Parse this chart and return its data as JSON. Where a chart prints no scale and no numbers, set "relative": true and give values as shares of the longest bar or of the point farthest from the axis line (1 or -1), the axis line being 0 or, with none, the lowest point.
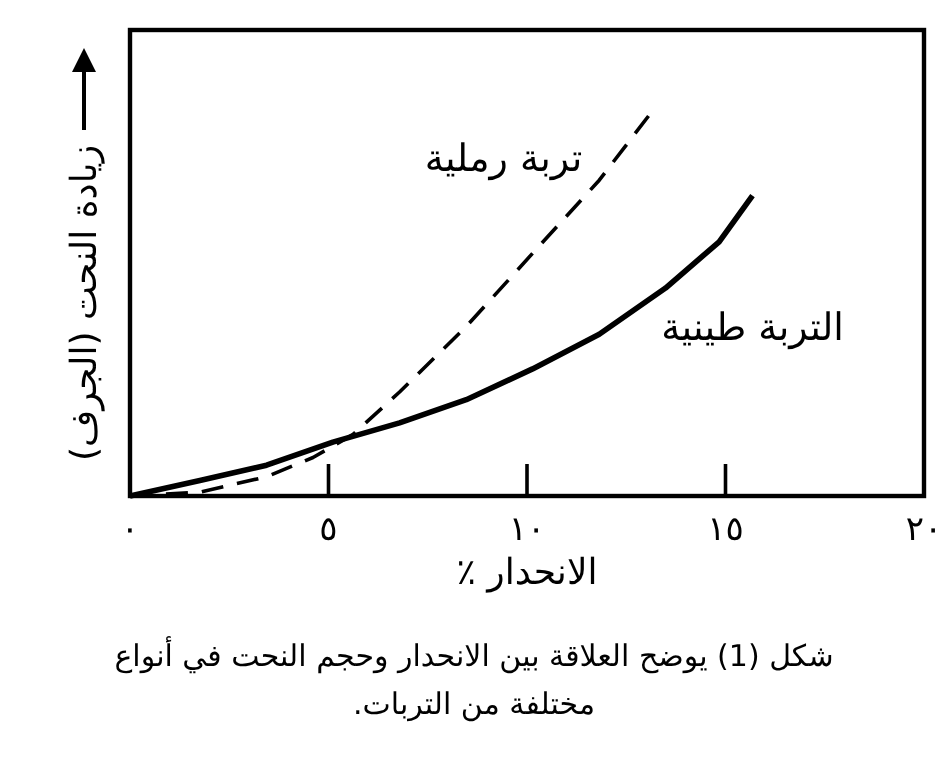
{
  "chart_data": {
    "type": "line",
    "relative": true,
    "xlabel": "الانحدار ٪",
    "ylabel": "زيادة النحت (الجرف)",
    "xlim": [
      0,
      20
    ],
    "xticks": [
      {
        "value": 0,
        "label": "٠"
      },
      {
        "value": 5,
        "label": "٥"
      },
      {
        "value": 10,
        "label": "١٠"
      },
      {
        "value": 15,
        "label": "١٥"
      },
      {
        "value": 20,
        "label": "٢٠"
      }
    ],
    "annotations": [
      "شكل (1) يوضح العلاقة بين الانحدار وحجم النحت في أنواع مختلفة من التربات."
    ],
    "legend": false,
    "grid": false,
    "marker": "none",
    "series": [
      {
        "name": "تربة رملية",
        "color": "#000000",
        "line_style": "dashed",
        "x": [
          0,
          1.76,
          3.44,
          4.61,
          5.62,
          6.79,
          8.47,
          10.14,
          11.82,
          13.16
        ],
        "values": [
          0,
          0.01,
          0.05,
          0.1,
          0.16,
          0.27,
          0.44,
          0.63,
          0.82,
          1
        ]
      },
      {
        "name": "التربة طينية",
        "color": "#000000",
        "line_style": "solid",
        "x": [
          0,
          1.76,
          3.44,
          5.11,
          6.79,
          8.47,
          10.14,
          11.82,
          13.49,
          14.84,
          15.68
        ],
        "values": [
          0,
          0.04,
          0.08,
          0.14,
          0.19,
          0.25,
          0.33,
          0.42,
          0.54,
          0.66,
          0.78
        ]
      }
    ]
  }
}
